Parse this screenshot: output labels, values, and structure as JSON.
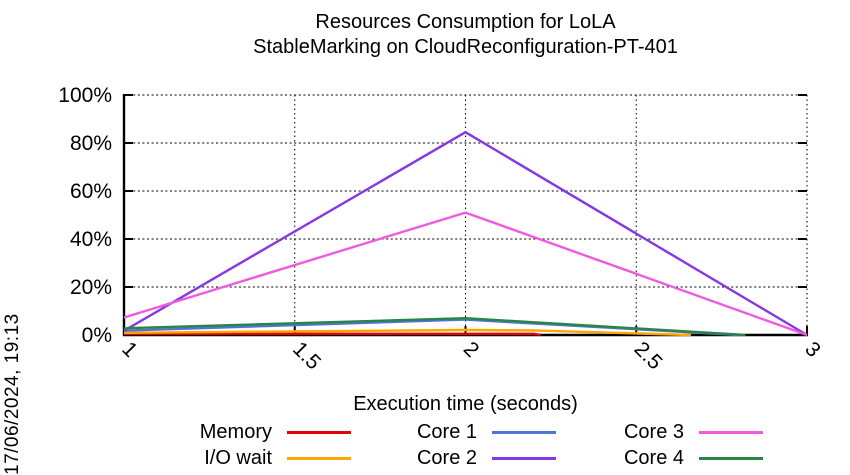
{
  "timestamp": "17/06/2024, 19:13",
  "chart_data": {
    "type": "line",
    "title": "Resources Consumption for LoLA",
    "subtitle": "StableMarking on CloudReconfiguration-PT-401",
    "xlabel": "Execution time (seconds)",
    "ylabel": "",
    "xlim": [
      1,
      3
    ],
    "ylim": [
      0,
      100
    ],
    "xticks": [
      1,
      1.5,
      2,
      2.5,
      3
    ],
    "xtick_labels": [
      "1",
      "1.5",
      "2",
      "2.5",
      "3"
    ],
    "yticks": [
      0,
      20,
      40,
      60,
      80,
      100
    ],
    "ytick_labels": [
      "0%",
      "20%",
      "40%",
      "60%",
      "80%",
      "100%"
    ],
    "grid": true,
    "legend_position": "bottom",
    "axis_color": "#000000",
    "series": [
      {
        "name": "Memory",
        "color": "#e60000",
        "points": [
          [
            1,
            0.5
          ],
          [
            2.2,
            0.5
          ],
          [
            2.22,
            0
          ]
        ]
      },
      {
        "name": "I/O wait",
        "color": "#ffa502",
        "points": [
          [
            1,
            0.9
          ],
          [
            2,
            2.1
          ],
          [
            2.2,
            1.9
          ],
          [
            2.66,
            0
          ]
        ]
      },
      {
        "name": "Core 1",
        "color": "#4f74d8",
        "points": [
          [
            1,
            1.8
          ],
          [
            2,
            6.4
          ],
          [
            2.8,
            0
          ]
        ]
      },
      {
        "name": "Core 2",
        "color": "#8637e6",
        "points": [
          [
            1,
            1.8
          ],
          [
            2,
            84.5
          ],
          [
            3,
            0
          ]
        ]
      },
      {
        "name": "Core 3",
        "color": "#ef5ae0",
        "points": [
          [
            1,
            7.3
          ],
          [
            2,
            51
          ],
          [
            3,
            0
          ]
        ]
      },
      {
        "name": "Core 4",
        "color": "#2a8447",
        "points": [
          [
            1,
            2.8
          ],
          [
            2,
            7
          ],
          [
            2.82,
            0
          ]
        ]
      }
    ]
  }
}
